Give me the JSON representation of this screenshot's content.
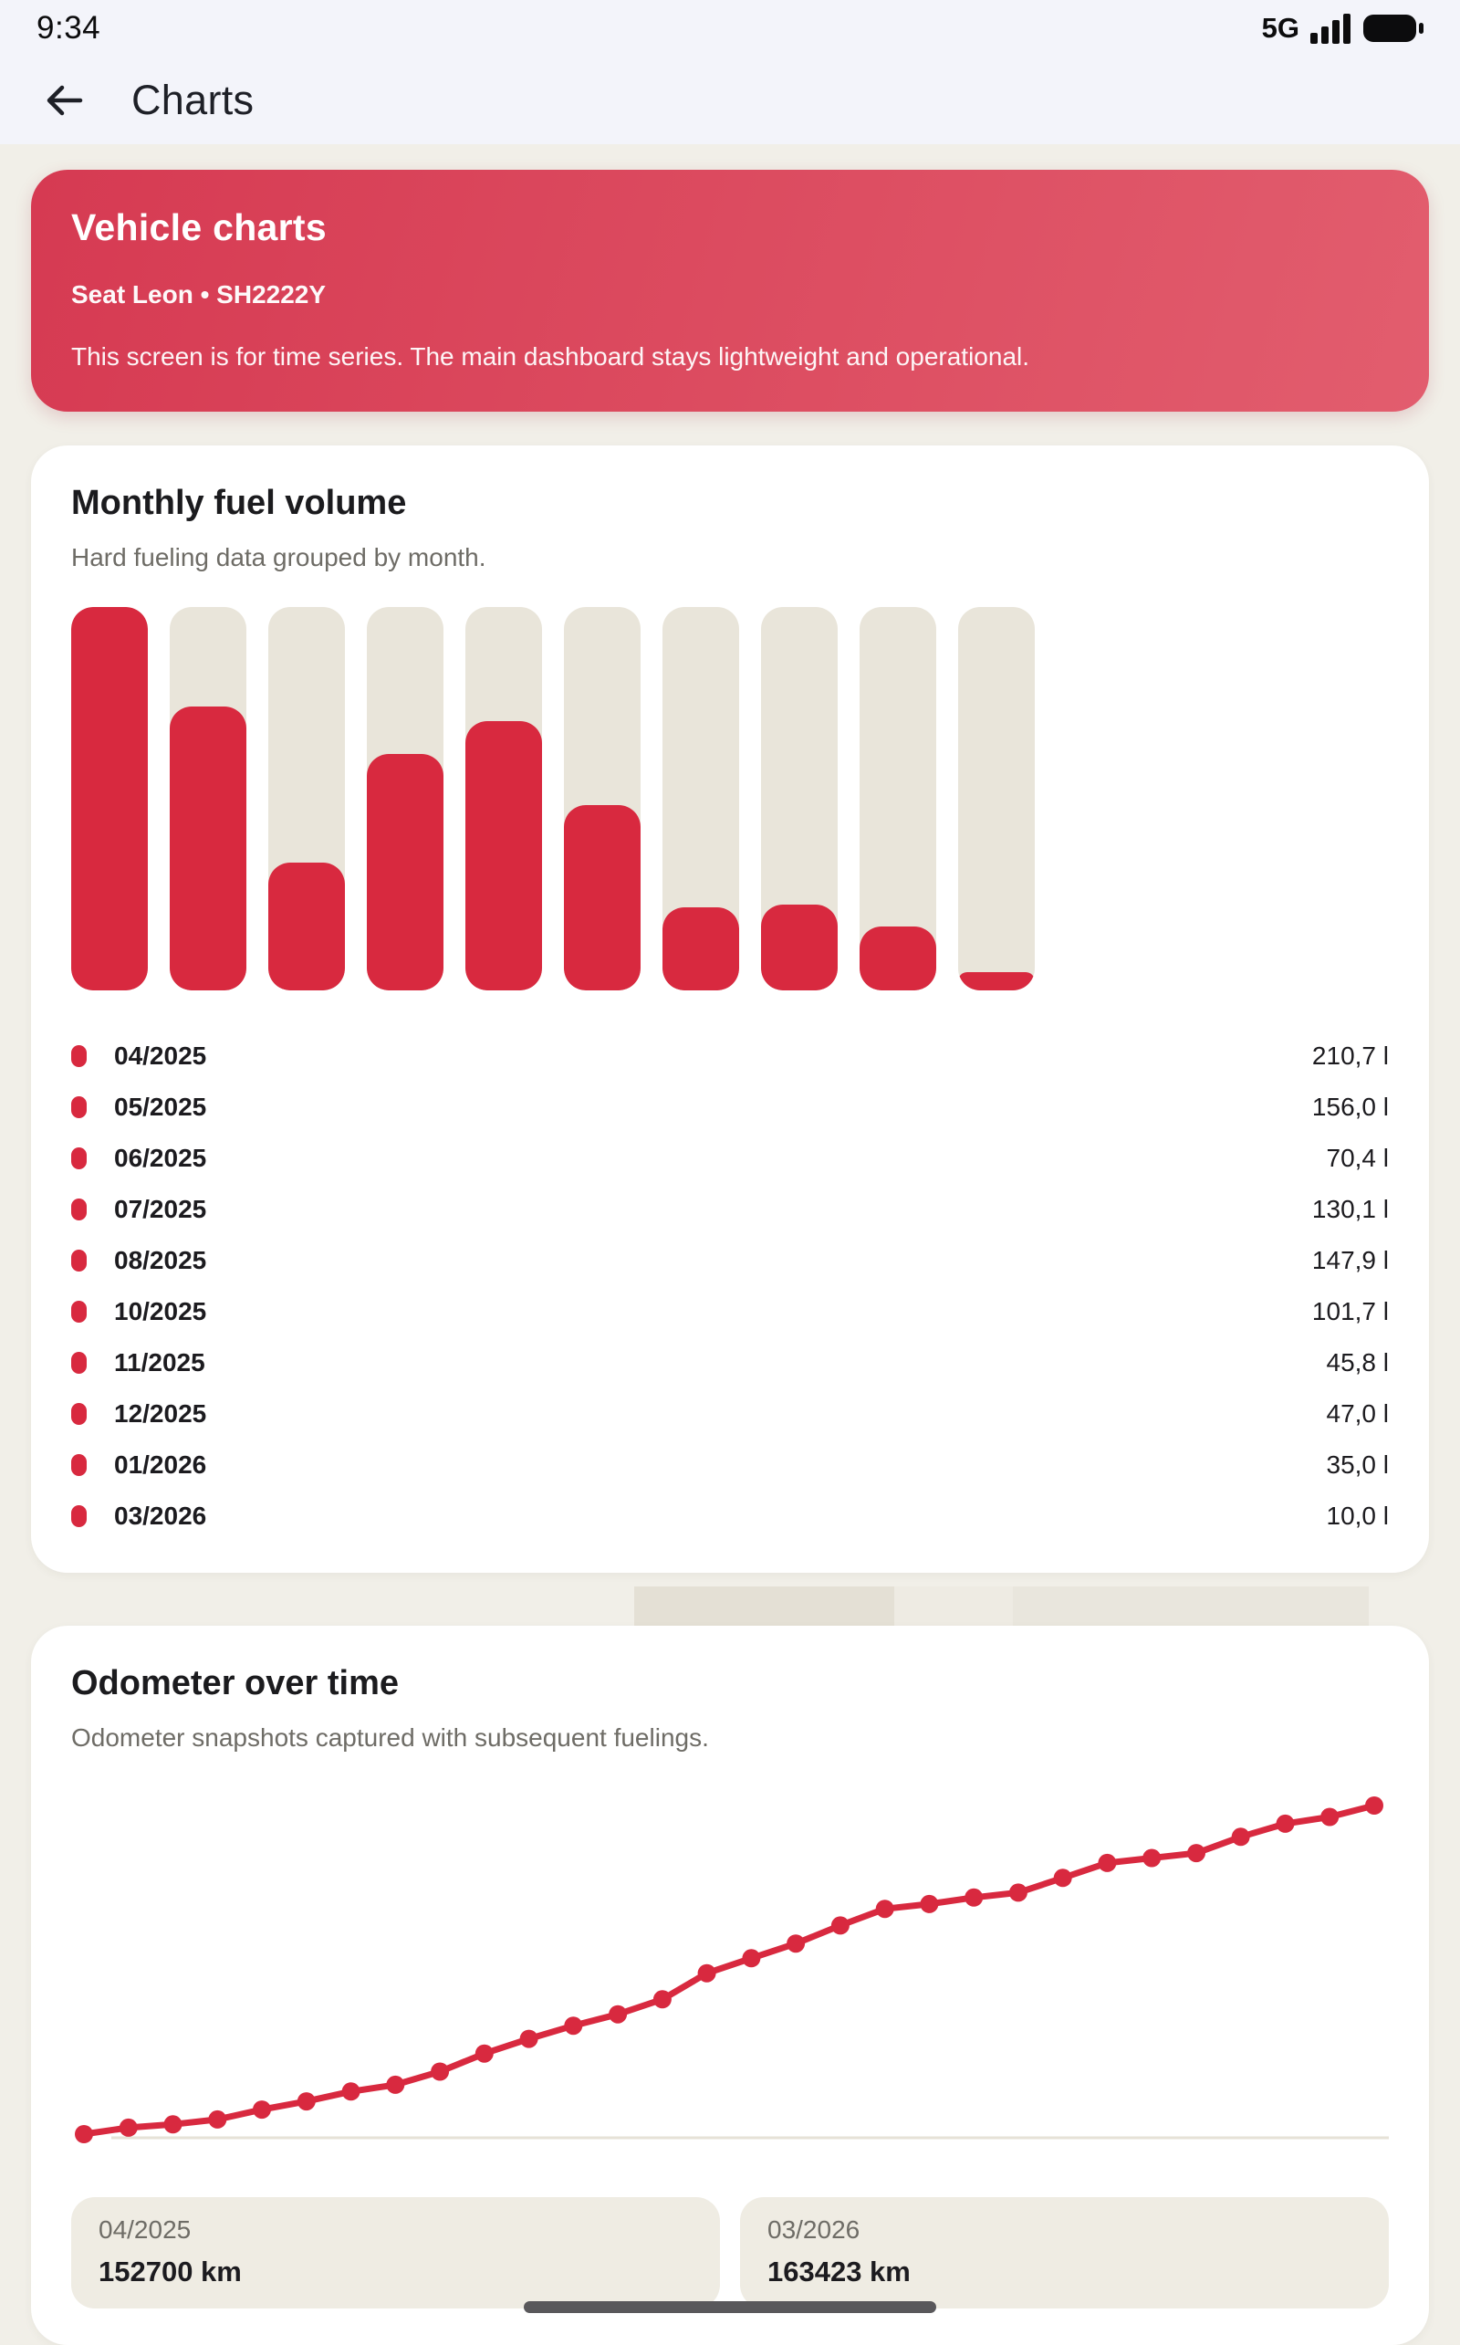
{
  "status_bar": {
    "time": "9:34",
    "network": "5G"
  },
  "header": {
    "title": "Charts"
  },
  "vehicle_card": {
    "title": "Vehicle charts",
    "subtitle": "Seat Leon • SH2222Y",
    "description": "This screen is for time series. The main dashboard stays lightweight and operational."
  },
  "fuel_card": {
    "title": "Monthly fuel volume",
    "subtitle": "Hard fueling data grouped by month."
  },
  "odometer_card": {
    "title": "Odometer over time",
    "subtitle": "Odometer snapshots captured with subsequent fuelings.",
    "stats": [
      {
        "label": "04/2025",
        "value": "152700 km"
      },
      {
        "label": "03/2026",
        "value": "163423 km"
      }
    ]
  },
  "colors": {
    "accent": "#d8293f",
    "hero_gradient_start": "#d63a52",
    "hero_gradient_end": "#e25d6e",
    "bar_track": "#e9e5da",
    "baseline": "#e6e2d7",
    "page_bg": "#f1efe8",
    "header_bg": "#f3f4fa",
    "stat_bg": "#efece3",
    "texture_patches": [
      "#e4e0d5",
      "#eeebe3",
      "#e9e6dd"
    ]
  },
  "chart_data": [
    {
      "type": "bar",
      "title": "Monthly fuel volume",
      "categories": [
        "04/2025",
        "05/2025",
        "06/2025",
        "07/2025",
        "08/2025",
        "10/2025",
        "11/2025",
        "12/2025",
        "01/2026",
        "03/2026"
      ],
      "values": [
        210.7,
        156.0,
        70.4,
        130.1,
        147.9,
        101.7,
        45.8,
        47.0,
        35.0,
        10.0
      ],
      "value_labels": [
        "210,7 l",
        "156,0 l",
        "70,4 l",
        "130,1 l",
        "147,9 l",
        "101,7 l",
        "45,8 l",
        "47,0 l",
        "35,0 l",
        "10,0 l"
      ],
      "unit": "l",
      "ylim": [
        0,
        210.7
      ],
      "legend_position": "below"
    },
    {
      "type": "line",
      "title": "Odometer over time",
      "unit": "km",
      "x_range": [
        "04/2025",
        "03/2026"
      ],
      "ylim": [
        152700,
        163423
      ],
      "values": [
        152700,
        152910,
        153020,
        153180,
        153500,
        153770,
        154090,
        154310,
        154740,
        155330,
        155810,
        156240,
        156610,
        157100,
        157950,
        158440,
        158920,
        159510,
        160050,
        160210,
        160420,
        160580,
        161060,
        161550,
        161710,
        161870,
        162400,
        162830,
        163050,
        163423
      ],
      "grid": false,
      "marker": "circle"
    }
  ]
}
